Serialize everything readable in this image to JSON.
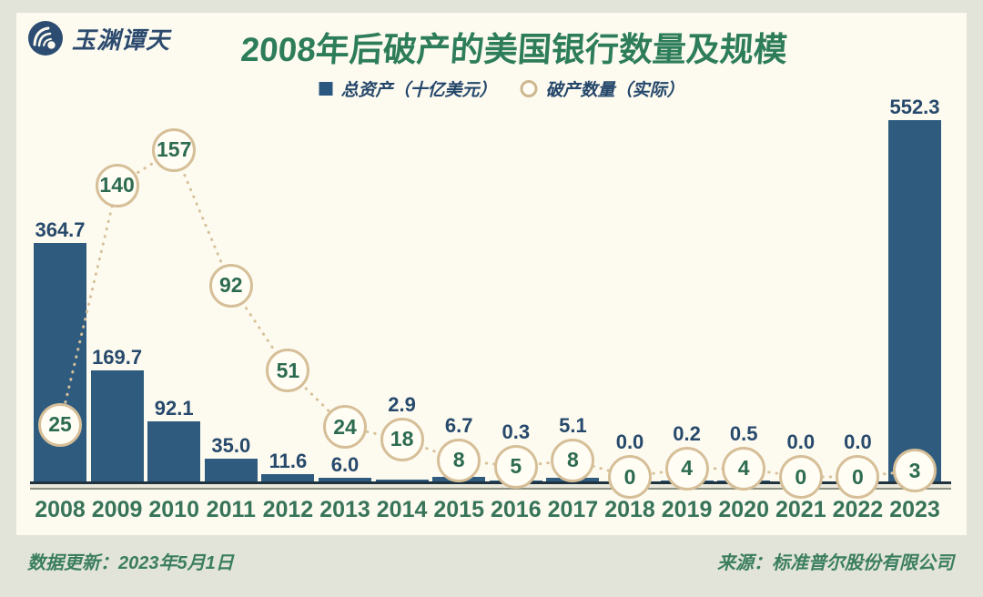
{
  "header": {
    "logo_text": "玉渊谭天",
    "title": "2008年后破产的美国银行数量及规模"
  },
  "legend": {
    "items": [
      {
        "marker": "square",
        "label": "总资产（十亿美元）"
      },
      {
        "marker": "circle",
        "label": "破产数量（实际）"
      }
    ]
  },
  "chart_data": {
    "type": "bar",
    "title": "2008年后破产的美国银行数量及规模",
    "categories": [
      "2008",
      "2009",
      "2010",
      "2011",
      "2012",
      "2013",
      "2014",
      "2015",
      "2016",
      "2017",
      "2018",
      "2019",
      "2020",
      "2021",
      "2022",
      "2023"
    ],
    "series": [
      {
        "name": "总资产（十亿美元）",
        "type": "bar",
        "values": [
          364.7,
          169.7,
          92.1,
          35.0,
          11.6,
          6.0,
          2.9,
          6.7,
          0.3,
          5.1,
          0.0,
          0.2,
          0.5,
          0.0,
          0.0,
          552.3
        ]
      },
      {
        "name": "破产数量（实际）",
        "type": "scatter",
        "values": [
          25,
          140,
          157,
          92,
          51,
          24,
          18,
          8,
          5,
          8,
          0,
          4,
          4,
          0,
          0,
          3
        ]
      }
    ],
    "legend_position": "top",
    "grid": false,
    "bar_axis_range": [
      0,
      552.3
    ],
    "count_axis_range": [
      0,
      157
    ]
  },
  "footer": {
    "updated": "数据更新：2023年5月1日",
    "source": "来源：标准普尔股份有限公司"
  },
  "colors": {
    "bar": "#2f5b7f",
    "bar_label": "#27496b",
    "circle_border": "#d6bf98",
    "circle_fill": "#fffdf4",
    "circle_text": "#2d6b51",
    "dotted_line": "#d8c19a",
    "title_green": "#2e7d5a",
    "tick_green": "#377459",
    "footer_green": "#3b7e5f",
    "legend_navy": "#24466a",
    "card_bg": "#fdfbf0",
    "page_bg": "#e2e4d9"
  }
}
